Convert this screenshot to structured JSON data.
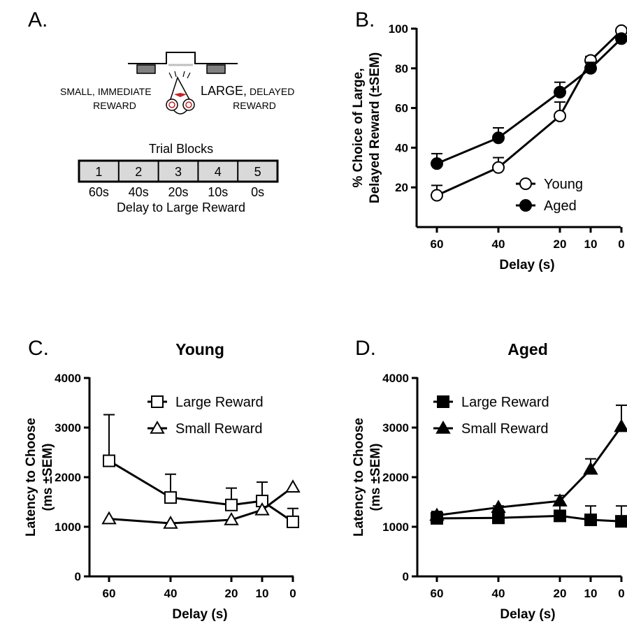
{
  "panels": {
    "A": {
      "label": "A.",
      "schematic": {
        "small_word": "SMALL,",
        "small_rest": "IMMEDIATE",
        "small_line2": "REWARD",
        "large_word": "LARGE,",
        "large_rest": "DELAYED",
        "large_line2": "REWARD"
      },
      "trial_blocks": {
        "title": "Trial Blocks",
        "blocks": [
          "1",
          "2",
          "3",
          "4",
          "5"
        ],
        "delays": [
          "60s",
          "40s",
          "20s",
          "10s",
          "0s"
        ],
        "caption": "Delay to Large Reward"
      }
    },
    "B": {
      "label": "B."
    },
    "C": {
      "label": "C."
    },
    "D": {
      "label": "D."
    }
  },
  "colors": {
    "line": "#000000",
    "box_fill": "#d9d9d9",
    "lever": "#808080",
    "nose": "#cc2222"
  },
  "chart_data": [
    {
      "id": "B",
      "type": "line",
      "title": "",
      "xlabel": "Delay (s)",
      "ylabel": "% Choice of Large, Delayed Reward (±SEM)",
      "ylabel_lines": [
        "% Choice of Large,",
        "Delayed  Reward (±SEM)"
      ],
      "x": [
        60,
        40,
        20,
        10,
        0
      ],
      "xlim": [
        60,
        0
      ],
      "x_reversed": true,
      "x_ticks": [
        60,
        40,
        20,
        10,
        0
      ],
      "ylim": [
        0,
        100
      ],
      "y_ticks": [
        20,
        40,
        60,
        80,
        100
      ],
      "grid": false,
      "legend_position": "bottom-right",
      "series": [
        {
          "name": "Young",
          "marker": "circle-open",
          "values": [
            16,
            30,
            56,
            84,
            99
          ],
          "err": [
            5,
            5,
            7,
            2,
            1
          ]
        },
        {
          "name": "Aged",
          "marker": "circle-filled",
          "values": [
            32,
            45,
            68,
            80,
            95
          ],
          "err": [
            5,
            5,
            5,
            3,
            1
          ]
        }
      ]
    },
    {
      "id": "C",
      "type": "line",
      "title": "Young",
      "xlabel": "Delay (s)",
      "ylabel": "Latency to Choose (ms ±SEM)",
      "ylabel_lines": [
        "Latency to Choose",
        "(ms ±SEM)"
      ],
      "x": [
        60,
        40,
        20,
        10,
        0
      ],
      "xlim": [
        60,
        0
      ],
      "x_reversed": true,
      "x_ticks": [
        60,
        40,
        20,
        10,
        0
      ],
      "ylim": [
        0,
        4000
      ],
      "y_ticks": [
        0,
        1000,
        2000,
        3000,
        4000
      ],
      "grid": false,
      "legend_position": "top-right",
      "series": [
        {
          "name": "Large Reward",
          "marker": "square-open",
          "values": [
            2330,
            1590,
            1440,
            1520,
            1100
          ],
          "err": [
            930,
            470,
            340,
            380,
            270
          ]
        },
        {
          "name": "Small Reward",
          "marker": "triangle-open",
          "values": [
            1160,
            1070,
            1140,
            1340,
            1800
          ],
          "err": [
            0,
            0,
            0,
            0,
            0
          ]
        }
      ]
    },
    {
      "id": "D",
      "type": "line",
      "title": "Aged",
      "xlabel": "Delay (s)",
      "ylabel": "Latency to Choose (ms ±SEM)",
      "ylabel_lines": [
        "Latency to Choose",
        "(ms ±SEM)"
      ],
      "x": [
        60,
        40,
        20,
        10,
        0
      ],
      "xlim": [
        60,
        0
      ],
      "x_reversed": true,
      "x_ticks": [
        60,
        40,
        20,
        10,
        0
      ],
      "ylim": [
        0,
        4000
      ],
      "y_ticks": [
        0,
        1000,
        2000,
        3000,
        4000
      ],
      "grid": false,
      "legend_position": "top-right",
      "series": [
        {
          "name": "Large Reward",
          "marker": "square-filled",
          "values": [
            1170,
            1180,
            1220,
            1140,
            1110
          ],
          "err": [
            140,
            240,
            250,
            280,
            310
          ]
        },
        {
          "name": "Small Reward",
          "marker": "triangle-filled",
          "values": [
            1230,
            1390,
            1520,
            2160,
            3020
          ],
          "err": [
            0,
            0,
            110,
            210,
            430
          ]
        }
      ]
    }
  ]
}
